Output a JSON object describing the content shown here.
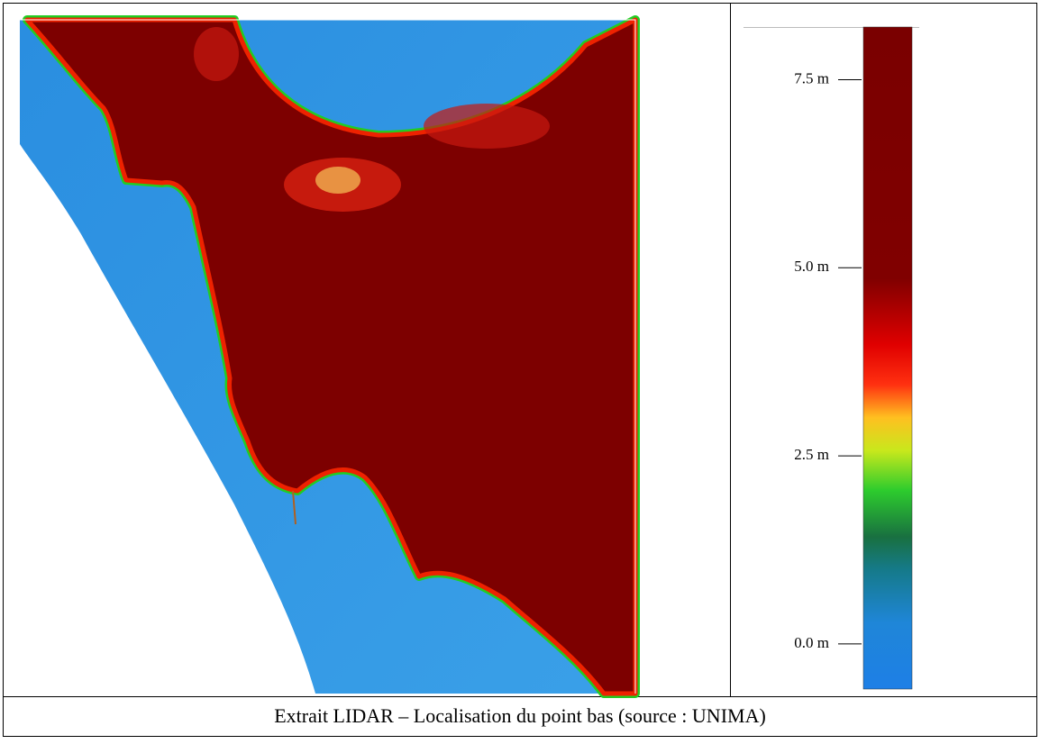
{
  "legend": {
    "lim": [
      -0.6,
      8.2
    ],
    "ticks": [
      {
        "value": 7.5,
        "label": "7.5 m"
      },
      {
        "value": 5.0,
        "label": "5.0 m"
      },
      {
        "value": 2.5,
        "label": "2.5 m"
      },
      {
        "value": 0.0,
        "label": "0.0 m"
      }
    ]
  },
  "caption": "Extrait LIDAR – Localisation du point bas (source : UNIMA)"
}
